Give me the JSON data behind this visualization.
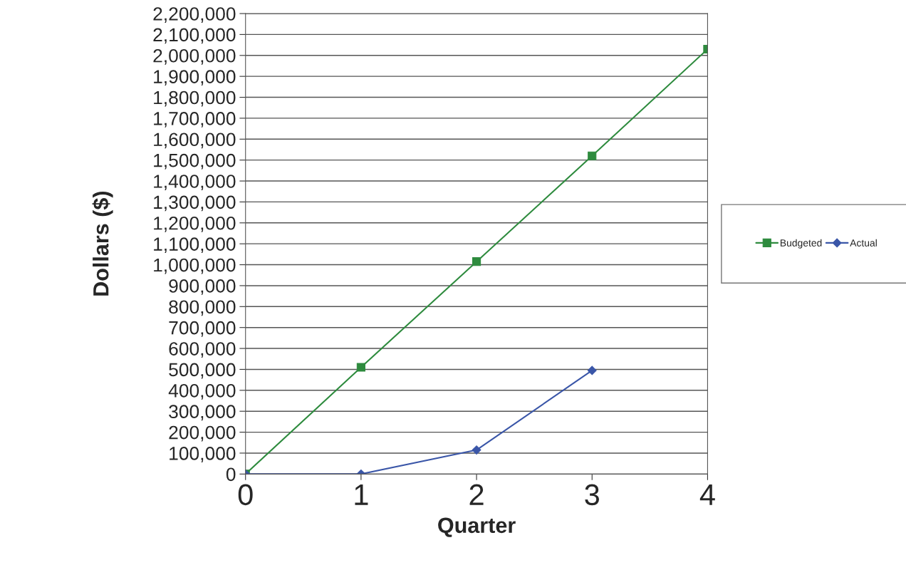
{
  "chart_data": {
    "type": "line",
    "xlabel": "Quarter",
    "ylabel": "Dollars ($)",
    "x": [
      0,
      1,
      2,
      3,
      4
    ],
    "series": [
      {
        "name": "Budgeted",
        "color": "#2e8b3e",
        "marker": "square",
        "values": [
          0,
          510000,
          1015000,
          1520000,
          2030000
        ]
      },
      {
        "name": "Actual",
        "color": "#3a56a8",
        "marker": "diamond",
        "values": [
          0,
          0,
          115000,
          495000,
          null
        ]
      }
    ],
    "xlim": [
      0,
      4
    ],
    "xticks": [
      0,
      1,
      2,
      3,
      4
    ],
    "ylim": [
      0,
      2200000
    ],
    "yticks": [
      {
        "value": 0,
        "label": "0"
      },
      {
        "value": 100000,
        "label": "100,000"
      },
      {
        "value": 200000,
        "label": "200,000"
      },
      {
        "value": 300000,
        "label": "300,000"
      },
      {
        "value": 400000,
        "label": "400,000"
      },
      {
        "value": 500000,
        "label": "500,000"
      },
      {
        "value": 600000,
        "label": "600,000"
      },
      {
        "value": 700000,
        "label": "700,000"
      },
      {
        "value": 800000,
        "label": "800,000"
      },
      {
        "value": 900000,
        "label": "900,000"
      },
      {
        "value": 1000000,
        "label": "1,000,000"
      },
      {
        "value": 1100000,
        "label": "1,100,000"
      },
      {
        "value": 1200000,
        "label": "1,200,000"
      },
      {
        "value": 1300000,
        "label": "1,300,000"
      },
      {
        "value": 1400000,
        "label": "1,400,000"
      },
      {
        "value": 1500000,
        "label": "1,500,000"
      },
      {
        "value": 1600000,
        "label": "1,600,000"
      },
      {
        "value": 1700000,
        "label": "1,700,000"
      },
      {
        "value": 1800000,
        "label": "1,800,000"
      },
      {
        "value": 1900000,
        "label": "1,900,000"
      },
      {
        "value": 2000000,
        "label": "2,000,000"
      },
      {
        "value": 2100000,
        "label": "2,100,000"
      },
      {
        "value": 2200000,
        "label": "2,200,000"
      }
    ],
    "grid": "y",
    "legend": "right"
  }
}
